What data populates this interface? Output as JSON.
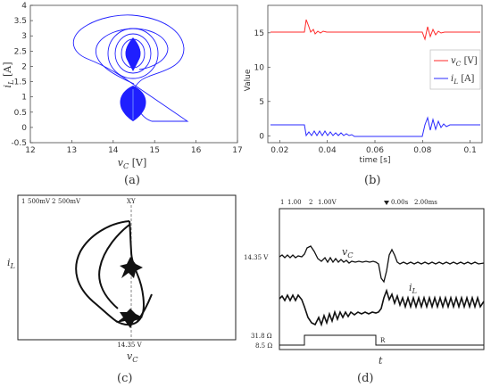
{
  "chart_data": [
    {
      "panel": "(a)",
      "type": "line",
      "xlabel": "v_C [V]",
      "ylabel": "i_L [A]",
      "xlim": [
        12,
        17
      ],
      "ylim": [
        -0.5,
        4
      ],
      "xticks": [
        "12",
        "13",
        "14",
        "15",
        "16",
        "17"
      ],
      "yticks": [
        "-0.5",
        "0",
        "0.5",
        "1",
        "1.5",
        "2",
        "2.5",
        "3",
        "3.5",
        "4"
      ],
      "series": [
        {
          "color": "#0000ff",
          "description_points": [
            {
              "x": 14.6,
              "y": 3.4
            },
            {
              "x": 16.1,
              "y": 2.6
            },
            {
              "x": 16.2,
              "y": 2.0
            },
            {
              "x": 15.5,
              "y": 1.2
            },
            {
              "x": 14.9,
              "y": 0.6
            },
            {
              "x": 15.1,
              "y": 0.1
            },
            {
              "x": 16.0,
              "y": 0.1
            },
            {
              "x": 14.2,
              "y": 1.6
            },
            {
              "x": 13.2,
              "y": 2.7
            },
            {
              "x": 12.6,
              "y": 3.0
            },
            {
              "x": 14.6,
              "y": 3.4
            }
          ]
        }
      ]
    },
    {
      "panel": "(b)",
      "type": "line",
      "xlabel": "time [s]",
      "ylabel": "Value",
      "xlim": [
        0.015,
        0.105
      ],
      "ylim": [
        -1,
        19
      ],
      "xticks": [
        "0.02",
        "0.04",
        "0.06",
        "0.08",
        "0.1"
      ],
      "yticks": [
        "0",
        "5",
        "10",
        "15"
      ],
      "legend": "right",
      "series": [
        {
          "name": "v_C [V]",
          "color": "#ff0000",
          "base": 14.35,
          "x": [
            0.015,
            0.03,
            0.031,
            0.035,
            0.04,
            0.078,
            0.08,
            0.083,
            0.105
          ],
          "y": [
            14.35,
            14.35,
            16.3,
            14.8,
            14.35,
            14.35,
            13.6,
            14.9,
            14.35
          ]
        },
        {
          "name": "i_L [A]",
          "color": "#0000ff",
          "x": [
            0.015,
            0.03,
            0.031,
            0.05,
            0.078,
            0.079,
            0.085,
            0.105
          ],
          "y": [
            1.7,
            1.7,
            0.35,
            0.45,
            0.45,
            2.6,
            1.8,
            1.7
          ]
        }
      ]
    },
    {
      "panel": "(c)",
      "type": "line",
      "xlabel": "v_C",
      "ylabel": "i_L",
      "header": [
        "1",
        "500mV",
        "2",
        "500mV",
        "XY"
      ],
      "marker_label": "14.35 V"
    },
    {
      "panel": "(d)",
      "type": "line",
      "xlabel": "t",
      "header": [
        "1",
        "1.00",
        "2",
        "1.00V",
        "0.00s",
        "2.00ms"
      ],
      "ylabels": [
        "14.35 V",
        "31.8 Ω",
        "8.5 Ω"
      ],
      "series": [
        {
          "name": "v_C"
        },
        {
          "name": "i_L"
        },
        {
          "name": "R"
        }
      ]
    }
  ],
  "captions": [
    "(a)",
    "(b)",
    "(c)",
    "(d)"
  ]
}
